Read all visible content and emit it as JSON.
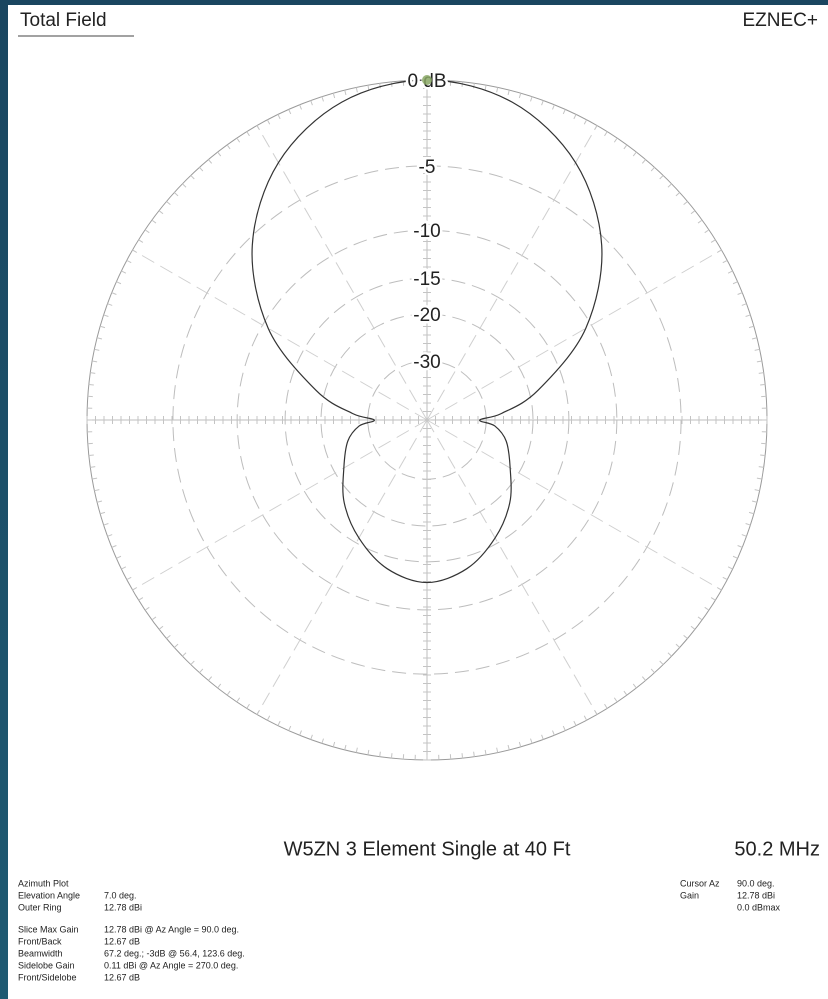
{
  "chart_data": {
    "type": "polar",
    "header_left": "Total Field",
    "header_right": "EZNEC+",
    "title": "W5ZN 3 Element Single at 40 Ft",
    "frequency": "50.2 MHz",
    "scale": "arrl-log",
    "color": "#333333",
    "angles": [
      0,
      5,
      15,
      30,
      45,
      60,
      75,
      90,
      105,
      120,
      135,
      150,
      165,
      175,
      180,
      185,
      195,
      210,
      225,
      240,
      255,
      270,
      285,
      300,
      315,
      330,
      345,
      355
    ],
    "values": [
      -32,
      -26,
      -18.6,
      -10.6,
      -5.48,
      -2.31,
      -0.56,
      0,
      -0.56,
      -2.31,
      -5.48,
      -10.6,
      -18.6,
      -26,
      -32,
      -27.6,
      -24.4,
      -21.7,
      -18.3,
      -15.7,
      -13.6,
      -12.67,
      -13.6,
      -15.7,
      -18.3,
      -21.7,
      -24.4,
      -27.6
    ],
    "rticks": [
      {
        "value": 0,
        "label": "0 dB"
      },
      -5,
      -10,
      -15,
      -20,
      -30
    ],
    "spokes": [
      0,
      30,
      60,
      90,
      120,
      150,
      180,
      210,
      240,
      270,
      300,
      330
    ],
    "cursor": {
      "angle": 90,
      "value": 0,
      "color": "#8aa865"
    },
    "info_left": [
      [
        {
          "label": "Azimuth Plot"
        },
        {
          "label": "Elevation Angle",
          "value": "7.0 deg."
        },
        {
          "label": "Outer Ring",
          "value": "12.78 dBi"
        }
      ],
      [
        {
          "label": "Slice Max Gain",
          "value": "12.78 dBi @ Az Angle = 90.0 deg."
        },
        {
          "label": "Front/Back",
          "value": "12.67 dB"
        },
        {
          "label": "Beamwidth",
          "value": "67.2 deg.; -3dB @ 56.4, 123.6 deg."
        },
        {
          "label": "Sidelobe Gain",
          "value": "0.11 dBi @ Az Angle = 270.0 deg."
        },
        {
          "label": "Front/Sidelobe",
          "value": "12.67 dB"
        }
      ]
    ],
    "info_right": [
      {
        "label": "Cursor Az",
        "value": "90.0 deg."
      },
      {
        "label": "Gain",
        "value": "12.78 dBi"
      },
      {
        "value": "0.0 dBmax"
      }
    ]
  }
}
